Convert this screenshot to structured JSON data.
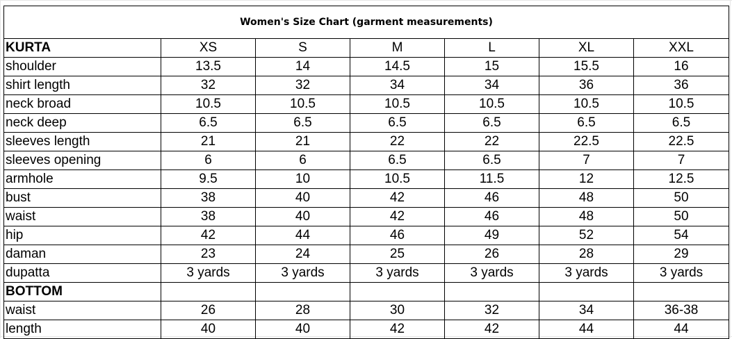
{
  "title": "Women's Size Chart (garment measurements)",
  "sizes": [
    "XS",
    "S",
    "M",
    "L",
    "XL",
    "XXL"
  ],
  "sections": [
    {
      "name": "KURTA",
      "rows": [
        {
          "label": "shoulder",
          "values": [
            "13.5",
            "14",
            "14.5",
            "15",
            "15.5",
            "16"
          ]
        },
        {
          "label": "shirt length",
          "values": [
            "32",
            "32",
            "34",
            "34",
            "36",
            "36"
          ]
        },
        {
          "label": "neck broad",
          "values": [
            "10.5",
            "10.5",
            "10.5",
            "10.5",
            "10.5",
            "10.5"
          ]
        },
        {
          "label": "neck deep",
          "values": [
            "6.5",
            "6.5",
            "6.5",
            "6.5",
            "6.5",
            "6.5"
          ]
        },
        {
          "label": "sleeves length",
          "values": [
            "21",
            "21",
            "22",
            "22",
            "22.5",
            "22.5"
          ]
        },
        {
          "label": "sleeves opening",
          "values": [
            "6",
            "6",
            "6.5",
            "6.5",
            "7",
            "7"
          ]
        },
        {
          "label": "armhole",
          "values": [
            "9.5",
            "10",
            "10.5",
            "11.5",
            "12",
            "12.5"
          ]
        },
        {
          "label": "bust",
          "values": [
            "38",
            "40",
            "42",
            "46",
            "48",
            "50"
          ]
        },
        {
          "label": "waist",
          "values": [
            "38",
            "40",
            "42",
            "46",
            "48",
            "50"
          ]
        },
        {
          "label": "hip",
          "values": [
            "42",
            "44",
            "46",
            "49",
            "52",
            "54"
          ]
        },
        {
          "label": "daman",
          "values": [
            "23",
            "24",
            "25",
            "26",
            "28",
            "29"
          ]
        },
        {
          "label": "dupatta",
          "values": [
            "3 yards",
            "3 yards",
            "3 yards",
            "3 yards",
            "3 yards",
            "3 yards"
          ]
        }
      ]
    },
    {
      "name": "BOTTOM",
      "rows": [
        {
          "label": "waist",
          "values": [
            "26",
            "28",
            "30",
            "32",
            "34",
            "36-38"
          ]
        },
        {
          "label": "length",
          "values": [
            "40",
            "40",
            "42",
            "42",
            "44",
            "44"
          ]
        }
      ]
    }
  ],
  "colors": {
    "border": "#000000",
    "text": "#000000",
    "gridline": "#e6e6e6",
    "background": "#ffffff"
  }
}
